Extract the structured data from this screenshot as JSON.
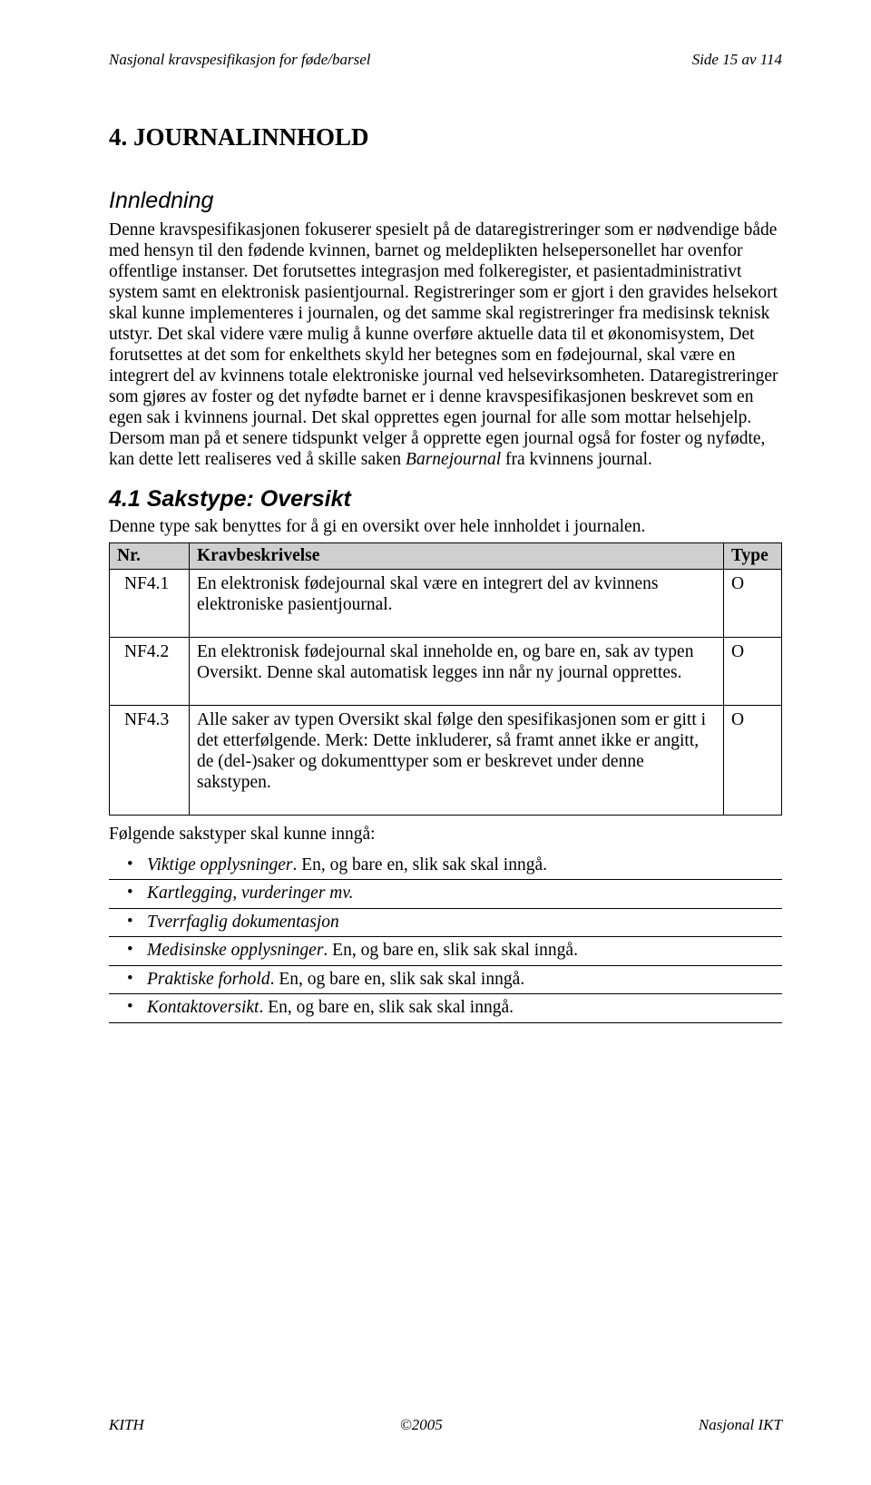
{
  "header": {
    "left": "Nasjonal kravspesifikasjon for føde/barsel",
    "right": "Side 15 av 114"
  },
  "title": "4. JOURNALINNHOLD",
  "intro_heading": "Innledning",
  "intro_body_pre": "Denne kravspesifikasjonen fokuserer spesielt på de dataregistreringer som er nødvendige både med hensyn til den fødende kvinnen, barnet og meldeplikten helsepersonellet har ovenfor offentlige instanser. Det forutsettes integrasjon med folkeregister, et pasientadministrativt system samt en elektronisk pasientjournal. Registreringer som er gjort i den gravides helsekort skal kunne implementeres i journalen, og det samme skal registreringer fra medisinsk teknisk utstyr. Det skal videre være mulig å kunne overføre aktuelle data til et økonomisystem, Det forutsettes at det som for enkelthets skyld her betegnes som en fødejournal, skal være en integrert del av kvinnens totale elektroniske journal ved helsevirksomheten. Dataregistreringer som gjøres av foster og det nyfødte barnet er i denne kravspesifikasjonen beskrevet som en egen sak i kvinnens journal. Det skal opprettes egen journal for alle som mottar helsehjelp. Dersom man på et senere tidspunkt velger å opprette egen journal også for foster og nyfødte, kan dette lett realiseres ved å skille saken ",
  "intro_body_ital": "Barnejournal",
  "intro_body_post": " fra kvinnens journal.",
  "section41": {
    "heading": "4.1 Sakstype: Oversikt",
    "intro": "Denne type sak benyttes for å gi en oversikt over hele innholdet i journalen."
  },
  "table": {
    "headers": {
      "nr": "Nr.",
      "desc": "Kravbeskrivelse",
      "type": "Type"
    },
    "rows": [
      {
        "nr": "NF4.1",
        "desc": "En elektronisk fødejournal skal være en integrert del av kvinnens elektroniske pasientjournal.",
        "type": "O"
      },
      {
        "nr": "NF4.2",
        "desc_pre": "En elektronisk fødejournal skal inneholde en, og bare en, sak av typen ",
        "desc_ital": "Oversikt",
        "desc_post": ". Denne skal automatisk legges inn når ny journal opprettes.",
        "type": "O"
      },
      {
        "nr": "NF4.3",
        "desc_pre": "Alle saker av typen ",
        "desc_ital": "Oversikt",
        "desc_post": " skal følge den spesifikasjonen som er gitt i det etterfølgende. Merk: Dette inkluderer, så framt annet ikke er angitt, de (del-)saker og dokumenttyper som er beskrevet under denne sakstypen.",
        "type": "O"
      }
    ]
  },
  "below_table": "Følgende sakstyper skal kunne inngå:",
  "bullets": [
    {
      "ital": "Viktige opplysninger",
      "rest": ". En, og bare en, slik sak skal inngå."
    },
    {
      "ital": "Kartlegging, vurderinger mv.",
      "rest": ""
    },
    {
      "ital": "Tverrfaglig dokumentasjon",
      "rest": ""
    },
    {
      "ital": "Medisinske opplysninger",
      "rest": ". En, og bare en, slik sak skal inngå."
    },
    {
      "ital": "Praktiske forhold",
      "rest": ". En, og bare en, slik sak skal inngå."
    },
    {
      "ital": "Kontaktoversikt",
      "rest": ". En, og bare en, slik sak skal inngå."
    }
  ],
  "footer": {
    "left": "KITH",
    "center": "©2005",
    "right": "Nasjonal IKT"
  }
}
